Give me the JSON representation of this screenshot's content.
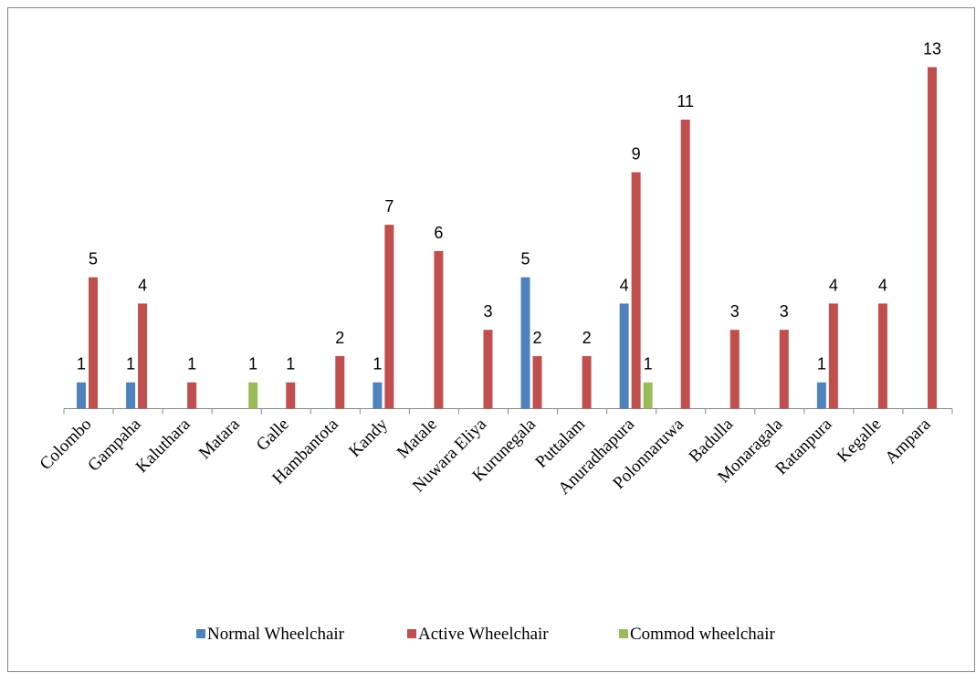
{
  "chart_data": {
    "type": "bar",
    "categories": [
      "Colombo",
      "Gampaha",
      "Kaluthara",
      "Matara",
      "Galle",
      "Hambantota",
      "Kandy",
      "Matale",
      "Nuwara Eliya",
      "Kurunegala",
      "Puttalam",
      "Anuradhapura",
      "Polonnaruwa",
      "Badulla",
      "Monaragala",
      "Ratanpura",
      "Kegalle",
      "Ampara"
    ],
    "series": [
      {
        "name": "Normal Wheelchair",
        "color": "#4f81bd",
        "values": [
          1,
          1,
          null,
          null,
          null,
          null,
          1,
          null,
          null,
          5,
          null,
          4,
          null,
          null,
          null,
          1,
          null,
          null
        ]
      },
      {
        "name": "Active Wheelchair",
        "color": "#c0504d",
        "values": [
          5,
          4,
          1,
          null,
          1,
          2,
          7,
          6,
          3,
          2,
          2,
          9,
          11,
          3,
          3,
          4,
          4,
          13
        ]
      },
      {
        "name": "Commod wheelchair",
        "color": "#9bbb59",
        "values": [
          null,
          null,
          null,
          1,
          null,
          null,
          null,
          null,
          null,
          null,
          null,
          1,
          null,
          null,
          null,
          null,
          null,
          null
        ]
      }
    ],
    "legend": "bottom"
  }
}
